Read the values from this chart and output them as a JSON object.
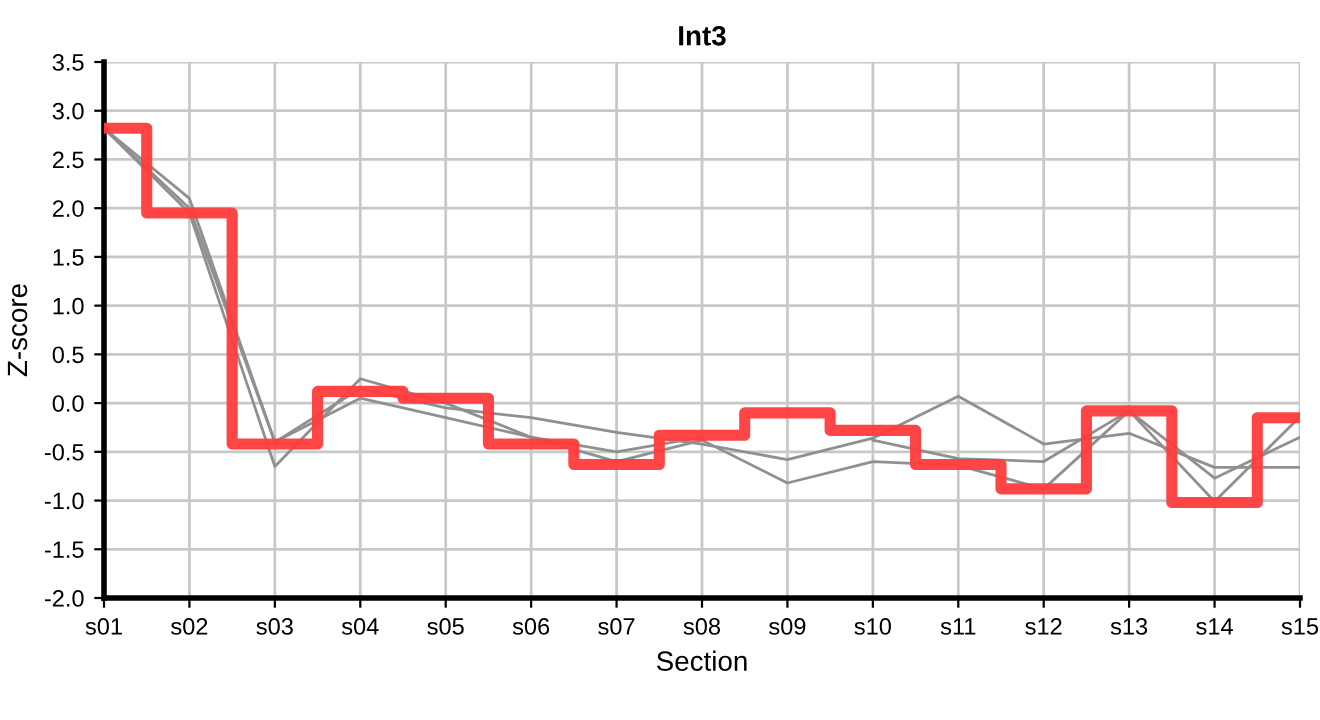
{
  "chart_data": {
    "type": "line",
    "title": "Int3",
    "xlabel": "Section",
    "ylabel": "Z-score",
    "categories": [
      "s01",
      "s02",
      "s03",
      "s04",
      "s05",
      "s06",
      "s07",
      "s08",
      "s09",
      "s10",
      "s11",
      "s12",
      "s13",
      "s14",
      "s15"
    ],
    "series": [
      {
        "color": "#909090",
        "values": [
          2.82,
          2.1,
          -0.4,
          0.15,
          -0.05,
          -0.15,
          -0.3,
          -0.42,
          -0.58,
          -0.36,
          0.07,
          -0.42,
          -0.31,
          -0.66,
          -0.66
        ]
      },
      {
        "color": "#909090",
        "values": [
          2.82,
          2.0,
          -0.4,
          0.05,
          -0.15,
          -0.35,
          -0.5,
          -0.35,
          null,
          -0.38,
          -0.57,
          -0.6,
          -0.08,
          -0.77,
          -0.35
        ]
      },
      {
        "color": "#909090",
        "values": [
          2.82,
          1.95,
          -0.65,
          0.25,
          0.0,
          -0.35,
          -0.6,
          -0.38,
          -0.82,
          -0.6,
          -0.64,
          -0.88,
          -0.08,
          -1.01,
          -0.14
        ]
      },
      {
        "type": "step",
        "color": "#ff3b3b",
        "values": [
          2.82,
          1.95,
          -0.42,
          0.12,
          0.05,
          -0.42,
          -0.63,
          -0.33,
          -0.1,
          -0.28,
          -0.63,
          -0.88,
          -0.08,
          -1.02,
          -0.15
        ]
      }
    ],
    "ylim": [
      -2.0,
      3.5
    ],
    "yticks": [
      {
        "value": -2.0,
        "label": "-2.0"
      },
      {
        "value": -1.5,
        "label": "-1.5"
      },
      {
        "value": -1.0,
        "label": "-1.0"
      },
      {
        "value": -0.5,
        "label": "-0.5"
      },
      {
        "value": 0.0,
        "label": "0.0"
      },
      {
        "value": 0.5,
        "label": "0.5"
      },
      {
        "value": 1.0,
        "label": "1.0"
      },
      {
        "value": 1.5,
        "label": "1.5"
      },
      {
        "value": 2.0,
        "label": "2.0"
      },
      {
        "value": 2.5,
        "label": "2.5"
      },
      {
        "value": 3.0,
        "label": "3.0"
      },
      {
        "value": 3.5,
        "label": "3.5"
      }
    ],
    "grid": true,
    "legend": false
  }
}
